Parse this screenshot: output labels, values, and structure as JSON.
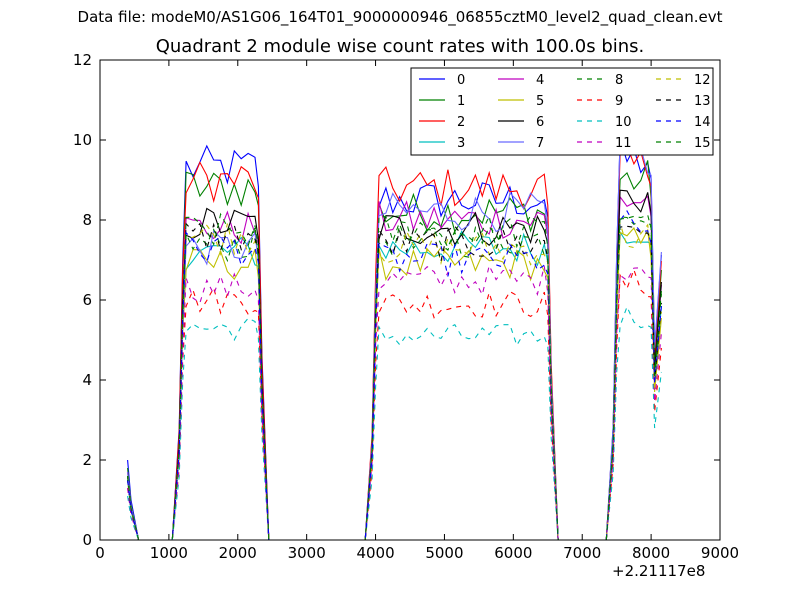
{
  "suptitle": "Data file: modeM0/AS1G06_164T01_9000000946_06855cztM0_level2_quad_clean.evt",
  "chart_data": {
    "type": "line",
    "title": "Quadrant 2 module wise count rates with 100.0s bins.",
    "xlabel": "",
    "ylabel": "",
    "x_offset_label": "+2.21117e8",
    "xlim": [
      0,
      9000
    ],
    "ylim": [
      0,
      12
    ],
    "xticks": [
      "0",
      "1000",
      "2000",
      "3000",
      "4000",
      "5000",
      "6000",
      "7000",
      "8000",
      "9000"
    ],
    "yticks": [
      "0",
      "2",
      "4",
      "6",
      "8",
      "10",
      "12"
    ],
    "legend_position": "upper-right",
    "legend_columns": 4,
    "segments": [
      [
        400,
        560
      ],
      [
        1050,
        2450
      ],
      [
        3850,
        6650
      ],
      [
        7350,
        8150
      ]
    ],
    "series": [
      {
        "name": "0",
        "color": "#0000ff",
        "dash": "solid",
        "levels": [
          2.0,
          9.3,
          8.5,
          9.5
        ]
      },
      {
        "name": "1",
        "color": "#008000",
        "dash": "solid",
        "levels": [
          1.8,
          8.8,
          8.2,
          9.0
        ]
      },
      {
        "name": "2",
        "color": "#ff0000",
        "dash": "solid",
        "levels": [
          1.7,
          9.0,
          8.8,
          9.3
        ]
      },
      {
        "name": "3",
        "color": "#00bfbf",
        "dash": "solid",
        "levels": [
          1.5,
          7.2,
          7.3,
          7.8
        ]
      },
      {
        "name": "4",
        "color": "#bf00bf",
        "dash": "solid",
        "levels": [
          1.6,
          7.8,
          8.0,
          8.5
        ]
      },
      {
        "name": "5",
        "color": "#bfbf00",
        "dash": "solid",
        "levels": [
          1.5,
          6.9,
          6.9,
          7.4
        ]
      },
      {
        "name": "6",
        "color": "#000000",
        "dash": "solid",
        "levels": [
          1.6,
          7.9,
          7.8,
          8.6
        ]
      },
      {
        "name": "7",
        "color": "#6b6bff",
        "dash": "solid",
        "levels": [
          1.7,
          7.3,
          8.2,
          9.6
        ]
      },
      {
        "name": "8",
        "color": "#008000",
        "dash": "dashed",
        "levels": [
          1.6,
          7.4,
          7.5,
          8.3
        ]
      },
      {
        "name": "9",
        "color": "#ff0000",
        "dash": "dashed",
        "levels": [
          1.3,
          6.0,
          5.9,
          6.4
        ]
      },
      {
        "name": "10",
        "color": "#00bfbf",
        "dash": "dashed",
        "levels": [
          1.1,
          5.3,
          5.1,
          5.6
        ]
      },
      {
        "name": "11",
        "color": "#bf00bf",
        "dash": "dashed",
        "levels": [
          1.3,
          6.3,
          6.5,
          6.9
        ]
      },
      {
        "name": "12",
        "color": "#bfbf00",
        "dash": "dashed",
        "levels": [
          1.5,
          7.6,
          7.3,
          7.6
        ]
      },
      {
        "name": "13",
        "color": "#000000",
        "dash": "dashed",
        "levels": [
          1.5,
          7.6,
          7.4,
          7.9
        ]
      },
      {
        "name": "14",
        "color": "#0000ff",
        "dash": "dashed",
        "levels": [
          1.5,
          7.3,
          7.0,
          7.8
        ]
      },
      {
        "name": "15",
        "color": "#008000",
        "dash": "dashed",
        "levels": [
          1.6,
          7.7,
          7.7,
          8.2
        ]
      }
    ]
  }
}
